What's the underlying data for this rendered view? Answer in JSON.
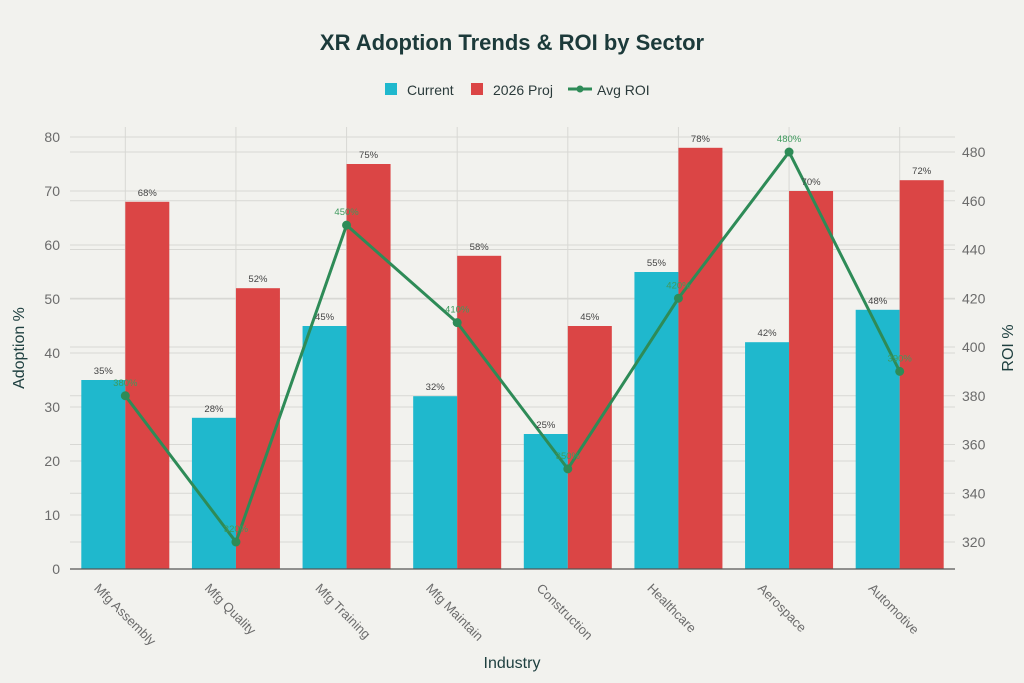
{
  "chart_data": {
    "type": "bar",
    "title": "XR Adoption Trends & ROI by Sector",
    "xlabel": "Industry",
    "ylabel": "Adoption %",
    "y2label": "ROI %",
    "categories": [
      "Mfg Assembly",
      "Mfg Quality",
      "Mfg Training",
      "Mfg Maintain",
      "Construction",
      "Healthcare",
      "Aerospace",
      "Automotive"
    ],
    "series": [
      {
        "name": "Current",
        "type": "bar",
        "axis": "left",
        "color": "#1fb8cd",
        "values": [
          35,
          28,
          45,
          32,
          25,
          55,
          42,
          48
        ]
      },
      {
        "name": "2026 Proj",
        "type": "bar",
        "axis": "left",
        "color": "#db4545",
        "values": [
          68,
          52,
          75,
          58,
          45,
          78,
          70,
          72
        ]
      },
      {
        "name": "Avg ROI",
        "type": "line",
        "axis": "right",
        "color": "#2e8b57",
        "values": [
          380,
          320,
          450,
          410,
          350,
          420,
          480,
          390
        ]
      }
    ],
    "ylim": [
      0,
      80
    ],
    "yticks": [
      0,
      10,
      20,
      30,
      40,
      50,
      60,
      70,
      80
    ],
    "y2lim": [
      310,
      490
    ],
    "y2ticks": [
      320,
      340,
      360,
      380,
      400,
      420,
      440,
      460,
      480
    ],
    "label_suffix": "%",
    "grid": true,
    "legend_position": "top-center"
  }
}
